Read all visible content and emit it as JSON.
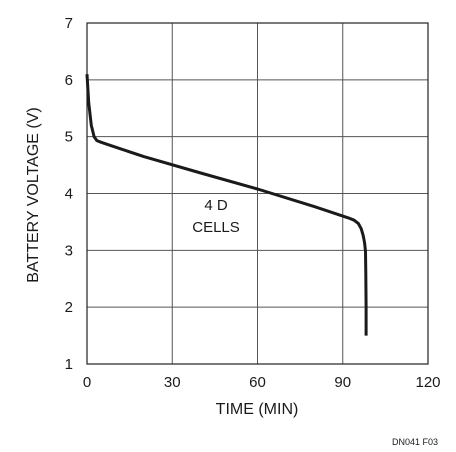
{
  "chart_data": {
    "type": "line",
    "xlabel": "TIME (MIN)",
    "ylabel": "BATTERY VOLTAGE (V)",
    "xlim": [
      0,
      120
    ],
    "ylim": [
      1,
      7
    ],
    "xticks": [
      "0",
      "30",
      "60",
      "90",
      "120"
    ],
    "yticks": [
      "1",
      "2",
      "3",
      "4",
      "5",
      "6",
      "7"
    ],
    "grid": true,
    "annotation": [
      "4 D",
      "CELLS"
    ],
    "figure_id": "DN041 F03",
    "series": [
      {
        "color": "#1a1a1a",
        "x": [
          0,
          0.6,
          1.5,
          2.5,
          3.5,
          5,
          8,
          20,
          40,
          60,
          80,
          92,
          94,
          95.5,
          96.5,
          97.2,
          97.7,
          98,
          98.1,
          98.2,
          98.2
        ],
        "y": [
          6.1,
          5.6,
          5.2,
          5.0,
          4.93,
          4.9,
          4.85,
          4.65,
          4.36,
          4.08,
          3.77,
          3.57,
          3.53,
          3.47,
          3.38,
          3.26,
          3.13,
          2.98,
          2.6,
          2.0,
          1.5
        ]
      }
    ]
  }
}
